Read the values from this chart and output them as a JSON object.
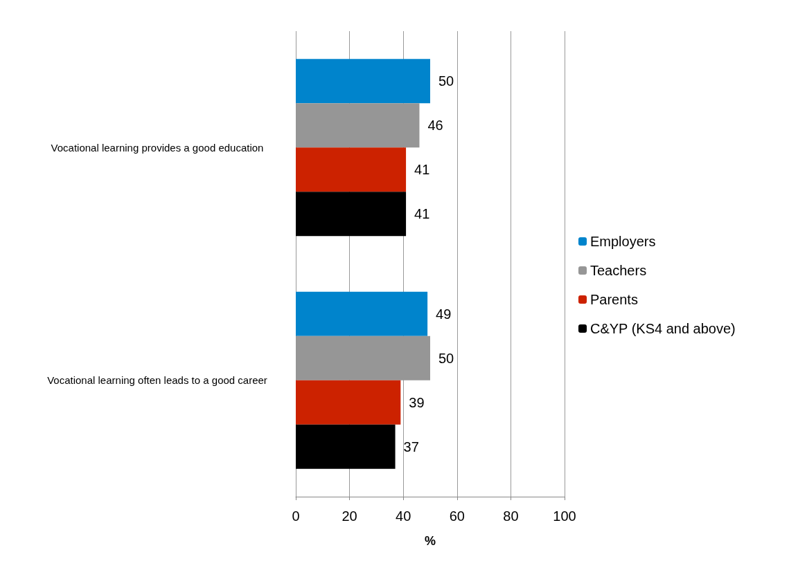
{
  "chart_data": {
    "type": "bar",
    "orientation": "horizontal",
    "categories": [
      "Vocational learning provides a good education",
      "Vocational learning often leads to a good career"
    ],
    "series": [
      {
        "name": "Employers",
        "color": "#0084cc",
        "values": [
          50,
          49
        ]
      },
      {
        "name": "Teachers",
        "color": "#969696",
        "values": [
          46,
          50
        ]
      },
      {
        "name": "Parents",
        "color": "#cc2200",
        "values": [
          41,
          39
        ]
      },
      {
        "name": "C&YP (KS4 and above)",
        "color": "#000000",
        "values": [
          41,
          37
        ]
      }
    ],
    "xlabel": "%",
    "xlim": [
      0,
      100
    ],
    "xticks": [
      0,
      20,
      40,
      60,
      80,
      100
    ],
    "grid": "x",
    "legend": "right",
    "data_labels": true
  }
}
